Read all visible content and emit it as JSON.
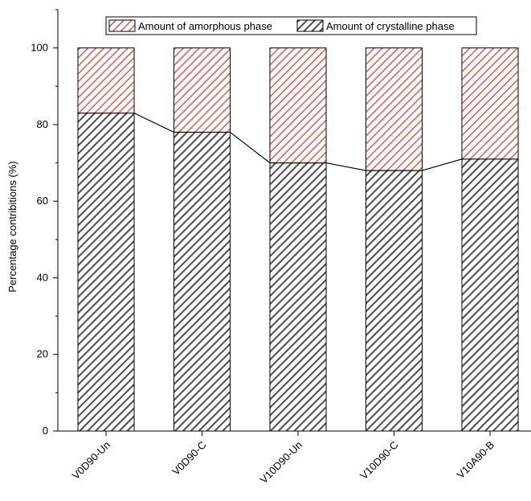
{
  "chart_data": {
    "type": "bar",
    "stacked": true,
    "categories": [
      "V0D90-Un",
      "V0D90-C",
      "V10D90-Un",
      "V10D90-C",
      "V10A90-B"
    ],
    "series": [
      {
        "name": "Amount of crystalline phase",
        "values": [
          83,
          78,
          70,
          68,
          71
        ],
        "color": "#4d4d4d",
        "pattern": "diagonal-hatch"
      },
      {
        "name": "Amount of amorphous phase",
        "values": [
          17,
          22,
          30,
          32,
          29
        ],
        "color": "#e8574a",
        "pattern": "diagonal-hatch"
      }
    ],
    "connector_line": {
      "series": "Amount of crystalline phase",
      "color": "#000000"
    },
    "xlabel": "",
    "ylabel": "Percentage contribitions (%)",
    "ylim": [
      0,
      110
    ],
    "yticks": [
      0,
      20,
      40,
      60,
      80,
      100
    ],
    "grid": false,
    "legend_position": "top"
  }
}
